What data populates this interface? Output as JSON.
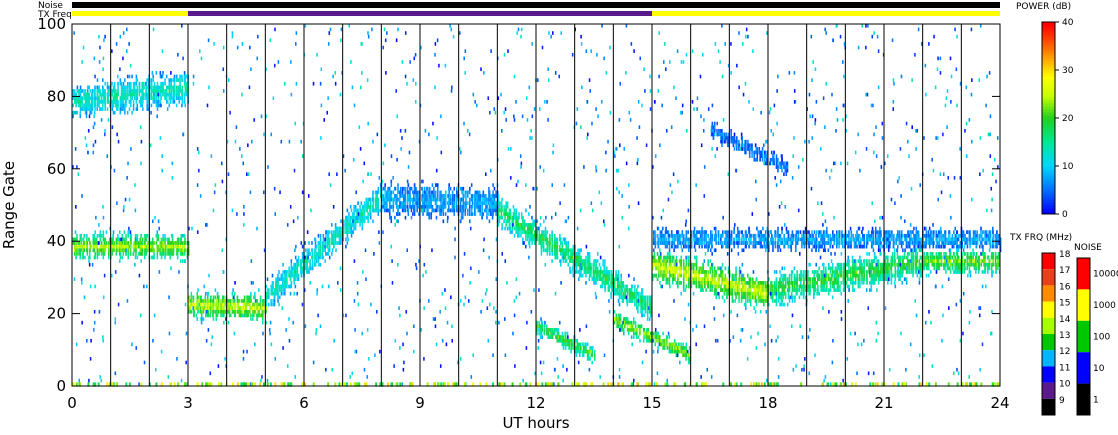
{
  "chart_data": {
    "type": "heatmap",
    "xlabel": "UT hours",
    "ylabel": "Range Gate",
    "xlim": [
      0,
      24
    ],
    "ylim": [
      0,
      100
    ],
    "x_ticks": [
      "0",
      "3",
      "6",
      "9",
      "12",
      "15",
      "18",
      "21",
      "24"
    ],
    "y_ticks": [
      "0",
      "20",
      "40",
      "60",
      "80",
      "100"
    ],
    "grid": "vertical lines every hour",
    "top_bars": {
      "noise_label": "Noise",
      "txfreq_label": "TX Freq",
      "noise_color": "#000000",
      "txfreq_segments": [
        {
          "from": 0,
          "to": 3,
          "color": "#ffff00"
        },
        {
          "from": 3,
          "to": 15,
          "color": "#5a1a8c"
        },
        {
          "from": 15,
          "to": 24,
          "color": "#ffff00"
        }
      ]
    },
    "power_scale": {
      "title": "POWER (dB)",
      "ticks": [
        "40",
        "30",
        "20",
        "10",
        "0"
      ],
      "range": [
        0,
        40
      ]
    },
    "txfreq_scale": {
      "title": "TX FRQ (MHz)",
      "ticks": [
        "18",
        "17",
        "16",
        "15",
        "14",
        "13",
        "12",
        "11",
        "10",
        "9"
      ],
      "colors": [
        "#ff0000",
        "#e8401a",
        "#ff8c00",
        "#ffff00",
        "#a8ff00",
        "#00c800",
        "#00b4ff",
        "#0000ff",
        "#5a1a8c",
        "#000000"
      ]
    },
    "noise_scale": {
      "title": "NOISE",
      "ticks": [
        "10000",
        "1000",
        "100",
        "10",
        "1"
      ],
      "colors": [
        "#ff0000",
        "#ffff00",
        "#00c800",
        "#0000ff",
        "#000000"
      ]
    },
    "echo_bands": [
      {
        "x": [
          0,
          3
        ],
        "y_center": [
          38,
          38
        ],
        "width": 6,
        "power": 24
      },
      {
        "x": [
          0,
          3
        ],
        "y_center": [
          78,
          82
        ],
        "width": 8,
        "power": 14
      },
      {
        "x": [
          3,
          5
        ],
        "y_center": [
          22,
          21
        ],
        "width": 6,
        "power": 26
      },
      {
        "x": [
          5,
          8
        ],
        "y_center": [
          24,
          52
        ],
        "width": 7,
        "power": 14
      },
      {
        "x": [
          8,
          11
        ],
        "y_center": [
          51,
          50
        ],
        "width": 8,
        "power": 8
      },
      {
        "x": [
          11,
          15
        ],
        "y_center": [
          48,
          21
        ],
        "width": 7,
        "power": 18
      },
      {
        "x": [
          12,
          13.5
        ],
        "y_center": [
          16,
          8
        ],
        "width": 4,
        "power": 20
      },
      {
        "x": [
          14,
          16
        ],
        "y_center": [
          18,
          8
        ],
        "width": 4,
        "power": 24
      },
      {
        "x": [
          15,
          18
        ],
        "y_center": [
          33,
          25
        ],
        "width": 8,
        "power": 26
      },
      {
        "x": [
          18,
          22
        ],
        "y_center": [
          26,
          34
        ],
        "width": 8,
        "power": 20
      },
      {
        "x": [
          22,
          24
        ],
        "y_center": [
          34,
          34
        ],
        "width": 6,
        "power": 22
      },
      {
        "x": [
          15,
          24
        ],
        "y_center": [
          40,
          40
        ],
        "width": 5,
        "power": 8
      },
      {
        "x": [
          16.5,
          18.5
        ],
        "y_center": [
          70,
          60
        ],
        "width": 4,
        "power": 6
      }
    ]
  }
}
